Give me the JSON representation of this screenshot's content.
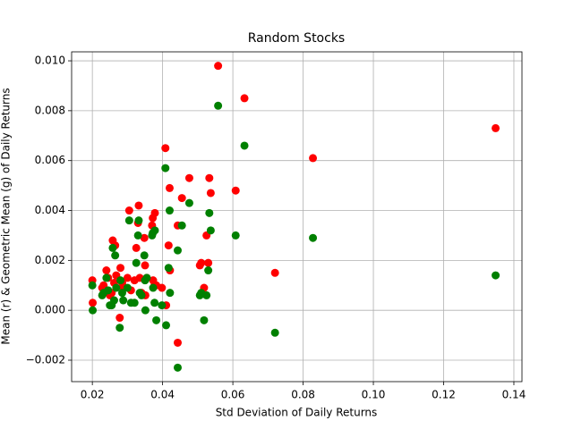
{
  "chart_data": {
    "type": "scatter",
    "title": "Random Stocks",
    "x_label": "Std Deviation of Daily Returns",
    "y_label": "Mean (r) & Geometric Mean (g) of Daily Returns",
    "x": [
      0.0558,
      0.0633,
      0.1348,
      0.0828,
      0.0408,
      0.072,
      0.0608,
      0.0537,
      0.0533,
      0.0476,
      0.042,
      0.0455,
      0.0443,
      0.0443,
      0.053,
      0.0525,
      0.0518,
      0.0506,
      0.051,
      0.0417,
      0.0421,
      0.041,
      0.0378,
      0.0372,
      0.0332,
      0.0305,
      0.033,
      0.0348,
      0.0325,
      0.0258,
      0.0265,
      0.037,
      0.0377,
      0.0382,
      0.0398,
      0.035,
      0.0355,
      0.034,
      0.0351,
      0.0335,
      0.032,
      0.031,
      0.028,
      0.0285,
      0.0278,
      0.0288,
      0.0262,
      0.0255,
      0.025,
      0.024,
      0.0232,
      0.0228,
      0.02,
      0.0201,
      0.0245,
      0.0268,
      0.03,
      0.0373
    ],
    "series": [
      {
        "color": "#ff0000",
        "values": [
          0.0098,
          0.0085,
          0.0073,
          0.0061,
          0.0065,
          0.0015,
          0.0048,
          0.0047,
          0.0053,
          0.0053,
          0.0049,
          0.0045,
          0.0034,
          -0.0013,
          0.0019,
          0.003,
          0.0009,
          0.0018,
          0.0019,
          0.0026,
          0.0016,
          0.0002,
          0.0039,
          0.0037,
          0.0042,
          0.004,
          0.0035,
          0.0029,
          0.0025,
          0.0028,
          0.0026,
          0.0034,
          0.001,
          0.001,
          0.0009,
          0.0018,
          0.0013,
          0.0007,
          0.0006,
          0.0013,
          0.0012,
          0.0008,
          0.0017,
          0.0011,
          -0.0003,
          0.0009,
          0.0011,
          0.0007,
          0.0006,
          0.0016,
          0.001,
          0.0009,
          0.0012,
          0.0003,
          0.0013,
          0.0014,
          0.0013,
          0.0012
        ]
      },
      {
        "color": "#008000",
        "values": [
          0.0082,
          0.0066,
          0.0014,
          0.0029,
          0.0057,
          -0.0009,
          0.003,
          0.0032,
          0.0039,
          0.0043,
          0.004,
          0.0034,
          0.0024,
          -0.0023,
          0.0016,
          0.0006,
          -0.0004,
          0.0006,
          0.0007,
          0.0017,
          0.0007,
          -0.0006,
          0.0032,
          0.0031,
          0.0036,
          0.0036,
          0.003,
          0.0022,
          0.0019,
          0.0025,
          0.0022,
          0.003,
          0.0003,
          -0.0004,
          0.0002,
          0.0012,
          0.0013,
          0.0006,
          0.0,
          0.0007,
          0.0003,
          0.0003,
          0.0012,
          0.0007,
          -0.0007,
          0.0004,
          0.0004,
          0.0002,
          0.0002,
          0.0013,
          0.0007,
          0.0006,
          0.001,
          0.0,
          0.0008,
          0.0009,
          0.0009,
          0.0009
        ]
      }
    ],
    "xlim": [
      0.0141,
      0.1423
    ],
    "ylim": [
      -0.00286,
      0.01036
    ],
    "xticks": [
      0.02,
      0.04,
      0.06,
      0.08,
      {
        "value": 0.1,
        "label": "0.10"
      },
      0.12,
      0.14
    ],
    "yticks": [
      {
        "value": -0.002,
        "label": "−0.002"
      },
      {
        "value": 0,
        "label": "0.000"
      },
      0.002,
      0.004,
      0.006,
      0.008,
      {
        "value": 0.01,
        "label": "0.010"
      }
    ],
    "grid": true
  }
}
